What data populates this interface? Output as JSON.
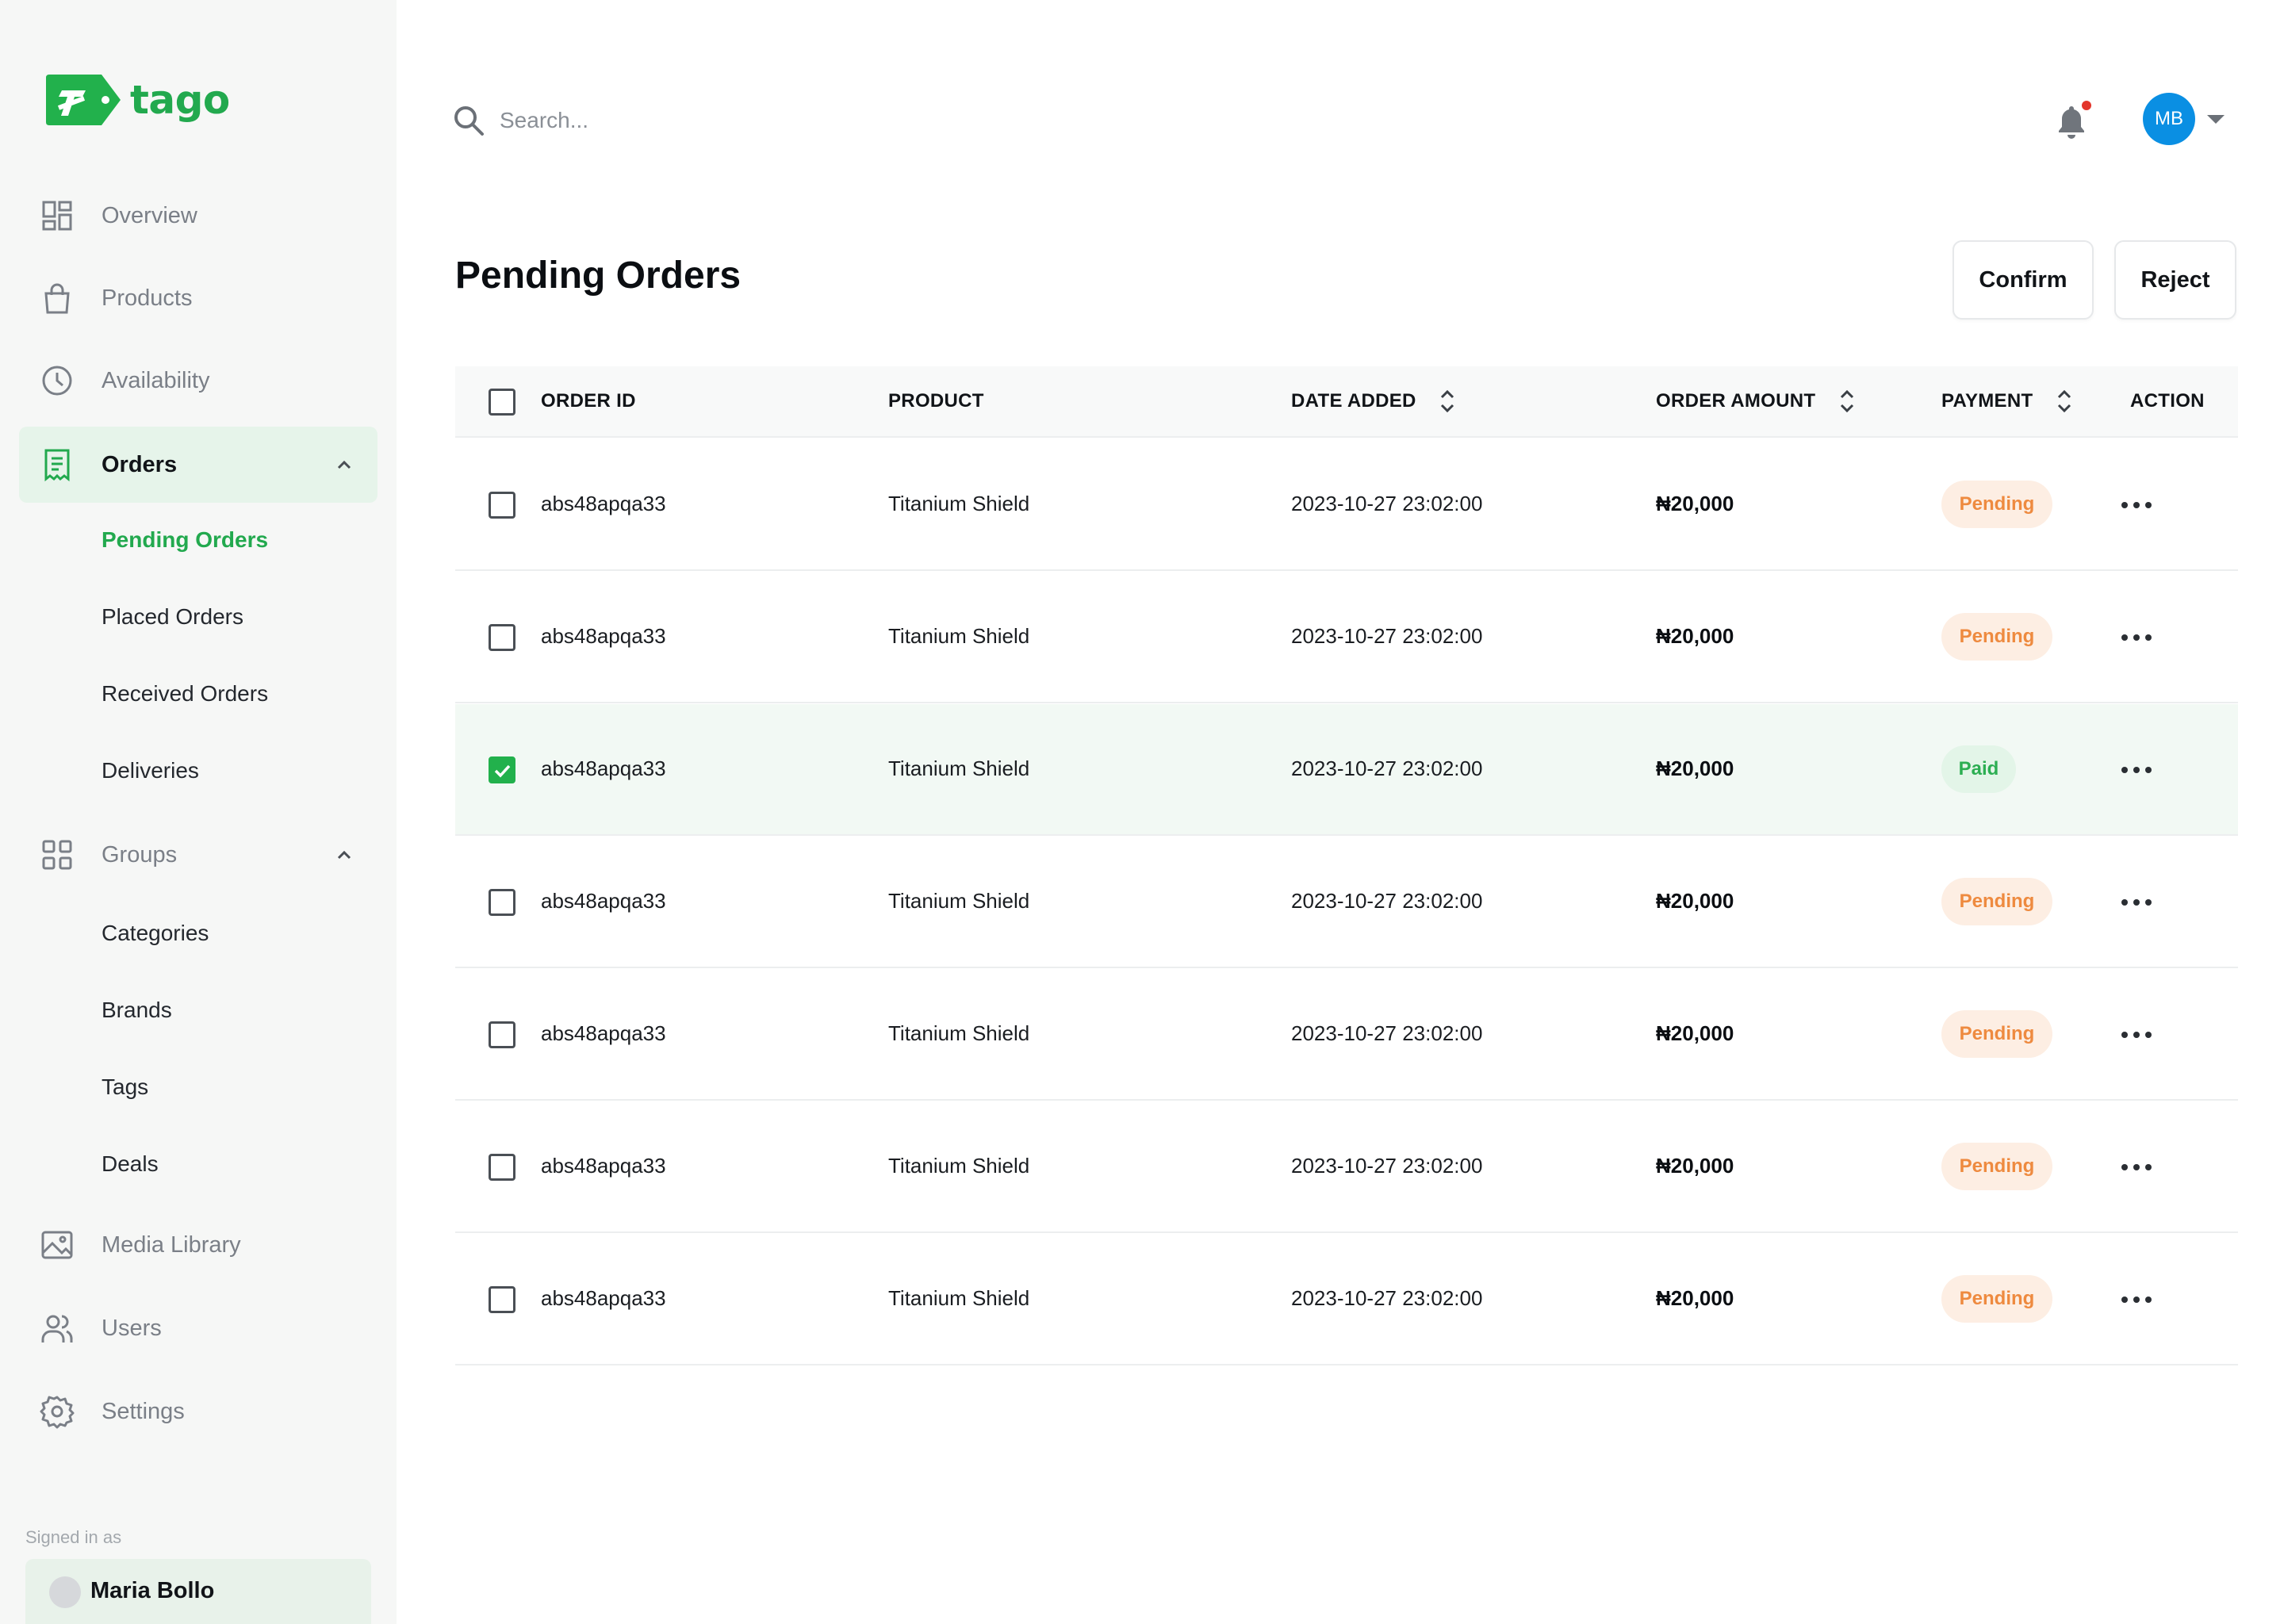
{
  "brand": {
    "name": "tago",
    "color": "#22a94e"
  },
  "sidebar": {
    "nav": [
      {
        "label": "Overview",
        "icon": "dashboard-icon"
      },
      {
        "label": "Products",
        "icon": "shopping-bag-icon"
      },
      {
        "label": "Availability",
        "icon": "clock-icon"
      },
      {
        "label": "Orders",
        "icon": "receipt-icon",
        "active": true,
        "expanded": true
      },
      {
        "label": "Groups",
        "icon": "grid-icon",
        "expanded": true
      },
      {
        "label": "Media Library",
        "icon": "image-icon"
      },
      {
        "label": "Users",
        "icon": "users-icon"
      },
      {
        "label": "Settings",
        "icon": "gear-icon"
      }
    ],
    "orders_sub": [
      "Pending Orders",
      "Placed Orders",
      "Received Orders",
      "Deliveries"
    ],
    "groups_sub": [
      "Categories",
      "Brands",
      "Tags",
      "Deals"
    ],
    "signed_in_label": "Signed in as",
    "user_name": "Maria Bollo"
  },
  "topbar": {
    "search_placeholder": "Search...",
    "avatar_initials": "MB",
    "has_notification": true
  },
  "page": {
    "title": "Pending Orders",
    "confirm_label": "Confirm",
    "reject_label": "Reject"
  },
  "table": {
    "columns": {
      "order_id": "ORDER ID",
      "product": "PRODUCT",
      "date_added": "DATE ADDED",
      "order_amount": "ORDER AMOUNT",
      "payment": "PAYMENT",
      "action": "ACTION"
    },
    "rows": [
      {
        "order_id": "abs48apqa33",
        "product": "Titanium Shield",
        "date": "2023-10-27 23:02:00",
        "amount": "₦20,000",
        "payment": "Pending",
        "checked": false
      },
      {
        "order_id": "abs48apqa33",
        "product": "Titanium Shield",
        "date": "2023-10-27 23:02:00",
        "amount": "₦20,000",
        "payment": "Pending",
        "checked": false
      },
      {
        "order_id": "abs48apqa33",
        "product": "Titanium Shield",
        "date": "2023-10-27 23:02:00",
        "amount": "₦20,000",
        "payment": "Paid",
        "checked": true
      },
      {
        "order_id": "abs48apqa33",
        "product": "Titanium Shield",
        "date": "2023-10-27 23:02:00",
        "amount": "₦20,000",
        "payment": "Pending",
        "checked": false
      },
      {
        "order_id": "abs48apqa33",
        "product": "Titanium Shield",
        "date": "2023-10-27 23:02:00",
        "amount": "₦20,000",
        "payment": "Pending",
        "checked": false
      },
      {
        "order_id": "abs48apqa33",
        "product": "Titanium Shield",
        "date": "2023-10-27 23:02:00",
        "amount": "₦20,000",
        "payment": "Pending",
        "checked": false
      },
      {
        "order_id": "abs48apqa33",
        "product": "Titanium Shield",
        "date": "2023-10-27 23:02:00",
        "amount": "₦20,000",
        "payment": "Pending",
        "checked": false
      }
    ]
  },
  "colors": {
    "accent": "#22a94e",
    "pending_text": "#ee8a3f",
    "pending_bg": "#fdeee3",
    "paid_text": "#2cae52",
    "paid_bg": "#e3f5e8",
    "avatar": "#0a8fe3",
    "notification_dot": "#e3352b"
  }
}
